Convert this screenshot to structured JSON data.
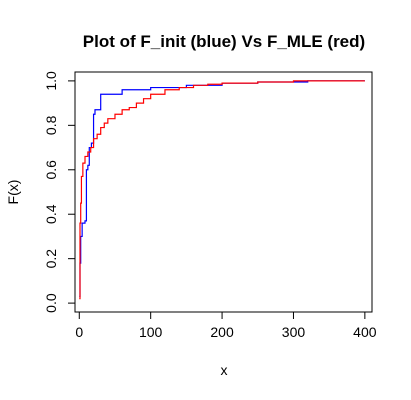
{
  "chart_data": {
    "type": "line",
    "title": "Plot of F_init (blue) Vs F_MLE (red)",
    "xlabel": "x",
    "ylabel": "F(x)",
    "xlim": [
      -6,
      410
    ],
    "ylim": [
      -0.04,
      1.04
    ],
    "xticks": [
      "0",
      "100",
      "200",
      "300",
      "400"
    ],
    "yticks": [
      "0.0",
      "0.2",
      "0.4",
      "0.6",
      "0.8",
      "1.0"
    ],
    "grid": false,
    "legend": "none",
    "series": [
      {
        "color": "#0000FF",
        "x": [
          0,
          1,
          1,
          2,
          2,
          4,
          4,
          8,
          8,
          10,
          10,
          12,
          12,
          14,
          14,
          17,
          17,
          20,
          20,
          22,
          22,
          30,
          30,
          60,
          60,
          100,
          100,
          150,
          150,
          200,
          200,
          250,
          250,
          320,
          320,
          400
        ],
        "y": [
          0.03,
          0.03,
          0.18,
          0.18,
          0.3,
          0.3,
          0.36,
          0.36,
          0.37,
          0.37,
          0.6,
          0.6,
          0.62,
          0.62,
          0.7,
          0.7,
          0.72,
          0.72,
          0.85,
          0.85,
          0.87,
          0.87,
          0.94,
          0.94,
          0.96,
          0.96,
          0.97,
          0.97,
          0.98,
          0.98,
          0.99,
          0.99,
          0.995,
          0.995,
          1.0,
          1.0
        ]
      },
      {
        "color": "#FF0000",
        "x": [
          0,
          1,
          1,
          2,
          2,
          3,
          3,
          5,
          5,
          8,
          8,
          12,
          12,
          16,
          16,
          20,
          20,
          25,
          25,
          30,
          30,
          35,
          35,
          40,
          40,
          50,
          50,
          60,
          60,
          70,
          70,
          80,
          80,
          90,
          90,
          100,
          100,
          120,
          120,
          140,
          140,
          160,
          160,
          180,
          180,
          200,
          200,
          250,
          250,
          300,
          300,
          400
        ],
        "y": [
          0.02,
          0.02,
          0.36,
          0.36,
          0.45,
          0.45,
          0.57,
          0.57,
          0.63,
          0.63,
          0.66,
          0.66,
          0.68,
          0.68,
          0.7,
          0.7,
          0.74,
          0.74,
          0.76,
          0.76,
          0.79,
          0.79,
          0.81,
          0.81,
          0.83,
          0.83,
          0.85,
          0.85,
          0.87,
          0.87,
          0.88,
          0.88,
          0.9,
          0.9,
          0.92,
          0.92,
          0.94,
          0.94,
          0.96,
          0.96,
          0.97,
          0.97,
          0.98,
          0.98,
          0.985,
          0.985,
          0.99,
          0.99,
          0.995,
          0.995,
          1.0,
          1.0
        ]
      }
    ]
  }
}
